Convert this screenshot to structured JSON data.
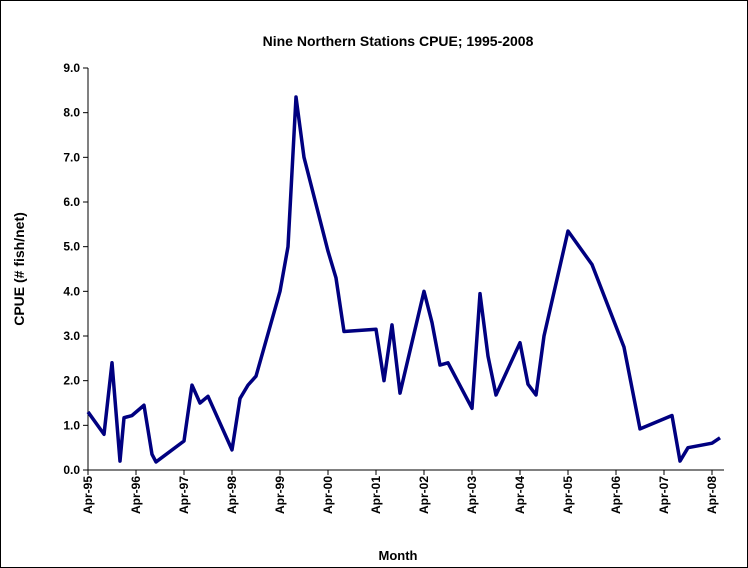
{
  "chart_data": {
    "type": "line",
    "title": "Nine Northern Stations CPUE; 1995-2008",
    "x_label": "Month",
    "y_label": "CPUE (# fish/net)",
    "x": [
      "1995-04",
      "1995-08",
      "1995-10",
      "1995-12",
      "1996-01",
      "1996-03",
      "1996-06",
      "1996-08",
      "1996-09",
      "1997-04",
      "1997-06",
      "1997-08",
      "1997-10",
      "1998-04",
      "1998-06",
      "1998-08",
      "1998-10",
      "1999-04",
      "1999-06",
      "1999-08",
      "1999-10",
      "2000-04",
      "2000-06",
      "2000-08",
      "2001-04",
      "2001-06",
      "2001-08",
      "2001-10",
      "2002-04",
      "2002-06",
      "2002-08",
      "2002-10",
      "2003-04",
      "2003-06",
      "2003-08",
      "2003-10",
      "2004-04",
      "2004-06",
      "2004-08",
      "2004-10",
      "2005-04",
      "2005-10",
      "2006-06",
      "2006-10",
      "2007-06",
      "2007-08",
      "2007-10",
      "2008-04",
      "2008-06"
    ],
    "series": [
      {
        "name": "CPUE",
        "color": "#000080",
        "values": [
          1.3,
          0.8,
          2.4,
          0.2,
          1.17,
          1.22,
          1.45,
          0.35,
          0.18,
          0.65,
          1.9,
          1.5,
          1.65,
          0.45,
          1.6,
          1.9,
          2.1,
          4.0,
          5.0,
          8.35,
          7.0,
          4.9,
          4.3,
          3.1,
          3.15,
          2.0,
          3.25,
          1.72,
          4.0,
          3.3,
          2.35,
          2.4,
          1.38,
          3.95,
          2.55,
          1.68,
          2.85,
          1.92,
          1.68,
          3.0,
          5.35,
          4.6,
          2.75,
          0.92,
          1.22,
          0.2,
          0.5,
          0.6,
          0.72
        ]
      }
    ],
    "xlim": [
      "1995-04",
      "2008-07"
    ],
    "xticks": [
      {
        "value": "1995-04",
        "label": "Apr-95"
      },
      {
        "value": "1996-04",
        "label": "Apr-96"
      },
      {
        "value": "1997-04",
        "label": "Apr-97"
      },
      {
        "value": "1998-04",
        "label": "Apr-98"
      },
      {
        "value": "1999-04",
        "label": "Apr-99"
      },
      {
        "value": "2000-04",
        "label": "Apr-00"
      },
      {
        "value": "2001-04",
        "label": "Apr-01"
      },
      {
        "value": "2002-04",
        "label": "Apr-02"
      },
      {
        "value": "2003-04",
        "label": "Apr-03"
      },
      {
        "value": "2004-04",
        "label": "Apr-04"
      },
      {
        "value": "2005-04",
        "label": "Apr-05"
      },
      {
        "value": "2006-04",
        "label": "Apr-06"
      },
      {
        "value": "2007-04",
        "label": "Apr-07"
      },
      {
        "value": "2008-04",
        "label": "Apr-08"
      }
    ],
    "ylim": [
      0,
      9
    ],
    "yticks": [
      {
        "value": 0,
        "label": "0.0"
      },
      {
        "value": 1,
        "label": "1.0"
      },
      {
        "value": 2,
        "label": "2.0"
      },
      {
        "value": 3,
        "label": "3.0"
      },
      {
        "value": 4,
        "label": "4.0"
      },
      {
        "value": 5,
        "label": "5.0"
      },
      {
        "value": 6,
        "label": "6.0"
      },
      {
        "value": 7,
        "label": "7.0"
      },
      {
        "value": 8,
        "label": "8.0"
      },
      {
        "value": 9,
        "label": "9.0"
      }
    ],
    "grid": false
  }
}
